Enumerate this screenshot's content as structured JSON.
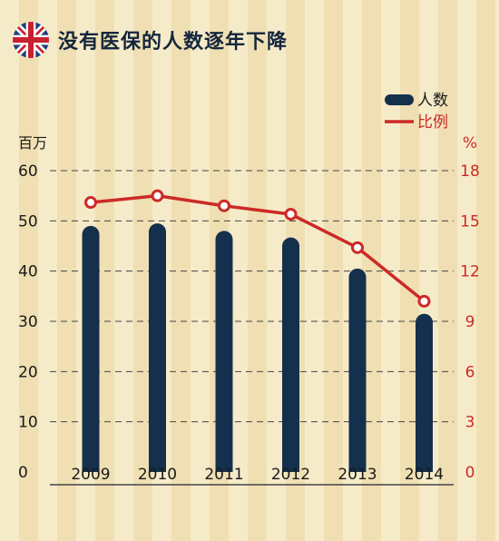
{
  "title": "没有医保的人数逐年下降",
  "colors": {
    "bar": "#14304d",
    "line": "#cc2a27",
    "grid": "#444444",
    "text": "#1a1a1a",
    "right_axis": "#cc2a27"
  },
  "chart_data": {
    "type": "bar",
    "categories": [
      "2009",
      "2010",
      "2011",
      "2012",
      "2013",
      "2014"
    ],
    "series": [
      {
        "name": "人数",
        "type": "bar",
        "axis": "left",
        "values": [
          49,
          49.5,
          48,
          46.7,
          40.5,
          31.5
        ]
      },
      {
        "name": "比例",
        "type": "line",
        "axis": "right",
        "values": [
          16.1,
          16.5,
          15.9,
          15.4,
          13.4,
          10.2
        ]
      }
    ],
    "y_left": {
      "unit": "百万",
      "ticks": [
        "0",
        "10",
        "20",
        "30",
        "40",
        "50",
        "60"
      ],
      "ylim": [
        0,
        60
      ]
    },
    "y_right": {
      "unit": "%",
      "ticks": [
        "0",
        "3",
        "6",
        "9",
        "12",
        "15",
        "18"
      ],
      "ylim": [
        0,
        18
      ]
    },
    "grid": true,
    "legend_position": "top-right"
  }
}
